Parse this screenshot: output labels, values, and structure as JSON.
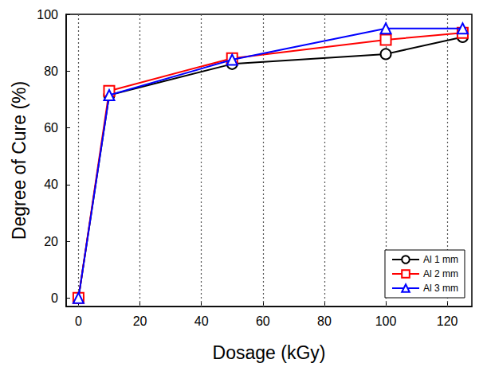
{
  "chart_data": {
    "type": "line",
    "x_label": "Dosage (kGy)",
    "y_label": "Degree of Cure (%)",
    "x": [
      0,
      10,
      50,
      100,
      125
    ],
    "series": [
      {
        "name": "Al 1 mm",
        "color": "#000000",
        "marker": "circle",
        "values": [
          0,
          71.5,
          82.5,
          86,
          92
        ]
      },
      {
        "name": "Al 2 mm",
        "color": "#ff0000",
        "marker": "square",
        "values": [
          0,
          73,
          84.5,
          91,
          93.5
        ]
      },
      {
        "name": "Al 3 mm",
        "color": "#0000ff",
        "marker": "triangle",
        "values": [
          0,
          71.5,
          84,
          95,
          95
        ]
      }
    ],
    "xlim": [
      -4,
      128
    ],
    "xticks": [
      0,
      20,
      40,
      60,
      80,
      100,
      120
    ],
    "ylim": [
      -3,
      100
    ],
    "yticks": [
      0,
      20,
      40,
      60,
      80,
      100
    ],
    "grid": true,
    "legend": "lower right"
  }
}
